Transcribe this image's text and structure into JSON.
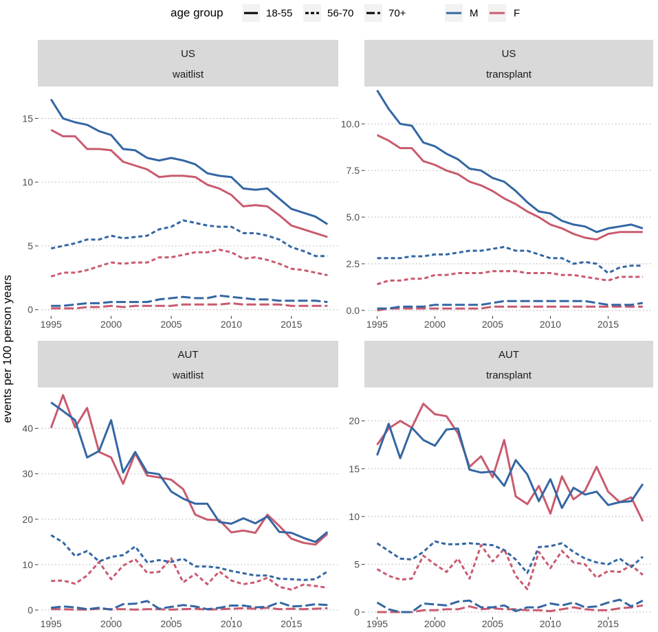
{
  "colors": {
    "M": "#3366a3",
    "F": "#c95a6e",
    "strip": "#d9d9d9",
    "grid": "#b3b3b3",
    "axis": "#333333"
  },
  "legend": {
    "title": "age group",
    "linetypes": [
      {
        "label": "18-55",
        "style": "solid"
      },
      {
        "label": "56-70",
        "style": "dashed"
      },
      {
        "label": "70+",
        "style": "longdash"
      }
    ],
    "sexes": [
      {
        "label": "M",
        "color": "#3366a3"
      },
      {
        "label": "F",
        "color": "#c95a6e"
      }
    ]
  },
  "ylabel": "events per 100 person years",
  "chart_data": [
    {
      "type": "line",
      "country": "US",
      "outcome": "waitlist",
      "ylim": [
        -0.5,
        17.5
      ],
      "yticks": [
        0,
        5,
        10,
        15
      ],
      "ytick_labels": [
        "0",
        "5",
        "10",
        "15"
      ],
      "x": [
        1995,
        1996,
        1997,
        1998,
        1999,
        2000,
        2001,
        2002,
        2003,
        2004,
        2005,
        2006,
        2007,
        2008,
        2009,
        2010,
        2011,
        2012,
        2013,
        2014,
        2015,
        2016,
        2017,
        2018
      ],
      "series": [
        {
          "sex": "M",
          "age": "18-55",
          "values": [
            16.5,
            15.0,
            14.7,
            14.5,
            14.0,
            13.7,
            12.6,
            12.5,
            11.9,
            11.7,
            11.9,
            11.7,
            11.4,
            10.7,
            10.5,
            10.4,
            9.5,
            9.4,
            9.5,
            8.7,
            7.9,
            7.6,
            7.3,
            6.7
          ]
        },
        {
          "sex": "F",
          "age": "18-55",
          "values": [
            14.1,
            13.6,
            13.6,
            12.6,
            12.6,
            12.5,
            11.6,
            11.3,
            11.0,
            10.4,
            10.5,
            10.5,
            10.4,
            9.8,
            9.5,
            9.0,
            8.1,
            8.2,
            8.1,
            7.4,
            6.6,
            6.3,
            6.0,
            5.7
          ]
        },
        {
          "sex": "M",
          "age": "56-70",
          "values": [
            4.8,
            5.0,
            5.2,
            5.5,
            5.5,
            5.8,
            5.6,
            5.7,
            5.8,
            6.3,
            6.5,
            7.0,
            6.8,
            6.6,
            6.5,
            6.5,
            6.0,
            6.0,
            5.8,
            5.5,
            4.9,
            4.6,
            4.2,
            4.2
          ]
        },
        {
          "sex": "F",
          "age": "56-70",
          "values": [
            2.6,
            2.9,
            2.9,
            3.1,
            3.4,
            3.7,
            3.6,
            3.7,
            3.7,
            4.1,
            4.1,
            4.3,
            4.5,
            4.5,
            4.7,
            4.5,
            4.0,
            4.1,
            3.9,
            3.6,
            3.2,
            3.1,
            2.9,
            2.7
          ]
        },
        {
          "sex": "M",
          "age": "70+",
          "values": [
            0.3,
            0.3,
            0.4,
            0.5,
            0.5,
            0.6,
            0.6,
            0.6,
            0.6,
            0.8,
            0.9,
            1.0,
            0.9,
            0.9,
            1.1,
            1.0,
            0.9,
            0.8,
            0.8,
            0.7,
            0.7,
            0.7,
            0.7,
            0.6
          ]
        },
        {
          "sex": "F",
          "age": "70+",
          "values": [
            0.1,
            0.1,
            0.1,
            0.2,
            0.2,
            0.3,
            0.2,
            0.3,
            0.3,
            0.3,
            0.3,
            0.4,
            0.4,
            0.4,
            0.4,
            0.5,
            0.4,
            0.4,
            0.4,
            0.4,
            0.3,
            0.3,
            0.3,
            0.3
          ]
        }
      ]
    },
    {
      "type": "line",
      "country": "US",
      "outcome": "transplant",
      "ylim": [
        -0.3,
        12.0
      ],
      "yticks": [
        0,
        2.5,
        5,
        7.5,
        10
      ],
      "ytick_labels": [
        "0.0",
        "2.5",
        "5.0",
        "7.5",
        "10.0"
      ],
      "x": [
        1995,
        1996,
        1997,
        1998,
        1999,
        2000,
        2001,
        2002,
        2003,
        2004,
        2005,
        2006,
        2007,
        2008,
        2009,
        2010,
        2011,
        2012,
        2013,
        2014,
        2015,
        2016,
        2017,
        2018
      ],
      "series": [
        {
          "sex": "M",
          "age": "18-55",
          "values": [
            11.8,
            10.8,
            10.0,
            9.9,
            9.0,
            8.8,
            8.4,
            8.1,
            7.6,
            7.5,
            7.1,
            6.9,
            6.4,
            5.8,
            5.3,
            5.2,
            4.8,
            4.6,
            4.5,
            4.2,
            4.4,
            4.5,
            4.6,
            4.4
          ]
        },
        {
          "sex": "F",
          "age": "18-55",
          "values": [
            9.4,
            9.1,
            8.7,
            8.7,
            8.0,
            7.8,
            7.5,
            7.3,
            6.9,
            6.7,
            6.4,
            6.0,
            5.7,
            5.3,
            5.0,
            4.6,
            4.4,
            4.1,
            3.9,
            3.8,
            4.1,
            4.2,
            4.2,
            4.2
          ]
        },
        {
          "sex": "M",
          "age": "56-70",
          "values": [
            2.8,
            2.8,
            2.8,
            2.9,
            2.9,
            3.0,
            3.0,
            3.1,
            3.2,
            3.2,
            3.3,
            3.4,
            3.2,
            3.2,
            3.0,
            2.8,
            2.8,
            2.5,
            2.6,
            2.5,
            2.0,
            2.3,
            2.4,
            2.4
          ]
        },
        {
          "sex": "F",
          "age": "56-70",
          "values": [
            1.4,
            1.6,
            1.6,
            1.7,
            1.7,
            1.9,
            1.9,
            2.0,
            2.0,
            2.0,
            2.1,
            2.1,
            2.1,
            2.0,
            2.0,
            2.0,
            1.9,
            1.9,
            1.8,
            1.7,
            1.6,
            1.8,
            1.8,
            1.8
          ]
        },
        {
          "sex": "M",
          "age": "70+",
          "values": [
            0.1,
            0.1,
            0.2,
            0.2,
            0.2,
            0.3,
            0.3,
            0.3,
            0.3,
            0.3,
            0.4,
            0.5,
            0.5,
            0.5,
            0.5,
            0.5,
            0.5,
            0.5,
            0.5,
            0.4,
            0.3,
            0.3,
            0.3,
            0.4
          ]
        },
        {
          "sex": "F",
          "age": "70+",
          "values": [
            0.0,
            0.1,
            0.1,
            0.1,
            0.1,
            0.1,
            0.1,
            0.1,
            0.1,
            0.1,
            0.2,
            0.2,
            0.2,
            0.2,
            0.2,
            0.2,
            0.2,
            0.2,
            0.2,
            0.2,
            0.2,
            0.2,
            0.2,
            0.2
          ]
        }
      ]
    },
    {
      "type": "line",
      "country": "AUT",
      "outcome": "waitlist",
      "ylim": [
        -1.5,
        49.0
      ],
      "yticks": [
        0,
        10,
        20,
        30,
        40
      ],
      "ytick_labels": [
        "0",
        "10",
        "20",
        "30",
        "40"
      ],
      "x": [
        1995,
        1996,
        1997,
        1998,
        1999,
        2000,
        2001,
        2002,
        2003,
        2004,
        2005,
        2006,
        2007,
        2008,
        2009,
        2010,
        2011,
        2012,
        2013,
        2014,
        2015,
        2016,
        2017,
        2018
      ],
      "series": [
        {
          "sex": "M",
          "age": "18-55",
          "values": [
            45.7,
            43.8,
            41.8,
            33.6,
            35.0,
            41.8,
            30.3,
            34.8,
            30.3,
            29.9,
            26.1,
            24.5,
            23.4,
            23.4,
            19.4,
            19.0,
            20.2,
            19.1,
            20.6,
            17.2,
            17.0,
            15.9,
            15.0,
            17.2
          ]
        },
        {
          "sex": "F",
          "age": "18-55",
          "values": [
            40.1,
            47.3,
            40.2,
            44.5,
            34.8,
            33.6,
            27.8,
            34.5,
            29.6,
            29.2,
            28.7,
            26.6,
            21.0,
            19.9,
            19.8,
            17.1,
            17.5,
            17.0,
            21.0,
            18.5,
            15.7,
            14.8,
            14.4,
            16.8
          ]
        },
        {
          "sex": "M",
          "age": "56-70",
          "values": [
            16.5,
            14.9,
            11.9,
            13.0,
            10.7,
            11.7,
            12.1,
            14.0,
            10.5,
            11.0,
            10.6,
            11.3,
            9.6,
            9.6,
            9.3,
            8.6,
            8.1,
            7.6,
            7.6,
            6.9,
            6.8,
            6.6,
            6.8,
            8.5
          ]
        },
        {
          "sex": "F",
          "age": "56-70",
          "values": [
            6.4,
            6.5,
            5.8,
            7.6,
            10.6,
            6.8,
            9.8,
            11.2,
            8.2,
            8.4,
            11.4,
            6.1,
            8.0,
            5.7,
            8.5,
            6.5,
            5.7,
            6.1,
            7.1,
            5.1,
            4.5,
            5.6,
            5.3,
            4.9
          ]
        },
        {
          "sex": "M",
          "age": "70+",
          "values": [
            0.5,
            0.8,
            0.6,
            0.2,
            0.5,
            0.1,
            1.3,
            1.4,
            2.0,
            0.3,
            0.7,
            1.1,
            0.8,
            0.2,
            0.5,
            1.0,
            1.0,
            0.6,
            0.7,
            1.7,
            0.8,
            0.9,
            1.3,
            1.1
          ]
        },
        {
          "sex": "F",
          "age": "70+",
          "values": [
            0.2,
            0.2,
            0.1,
            0.1,
            0.3,
            0.2,
            0.2,
            0.1,
            0.2,
            0.2,
            0.1,
            0.2,
            0.3,
            0.1,
            0.2,
            0.3,
            0.4,
            0.3,
            0.5,
            0.2,
            0.3,
            0.2,
            0.3,
            0.4
          ]
        }
      ]
    },
    {
      "type": "line",
      "country": "AUT",
      "outcome": "transplant",
      "ylim": [
        -0.5,
        23.5
      ],
      "yticks": [
        0,
        5,
        10,
        15,
        20
      ],
      "ytick_labels": [
        "0",
        "5",
        "10",
        "15",
        "20"
      ],
      "x": [
        1995,
        1996,
        1997,
        1998,
        1999,
        2000,
        2001,
        2002,
        2003,
        2004,
        2005,
        2006,
        2007,
        2008,
        2009,
        2010,
        2011,
        2012,
        2013,
        2014,
        2015,
        2016,
        2017,
        2018
      ],
      "series": [
        {
          "sex": "M",
          "age": "18-55",
          "values": [
            16.4,
            19.7,
            16.1,
            19.3,
            18.0,
            17.4,
            19.1,
            19.2,
            14.9,
            14.6,
            14.7,
            13.2,
            15.9,
            14.4,
            11.6,
            13.9,
            10.9,
            13.0,
            12.3,
            12.6,
            11.2,
            11.5,
            11.6,
            13.4
          ]
        },
        {
          "sex": "F",
          "age": "18-55",
          "values": [
            17.5,
            19.2,
            20.0,
            19.3,
            21.8,
            20.7,
            20.5,
            18.7,
            15.2,
            16.3,
            14.1,
            18.0,
            12.1,
            11.3,
            13.2,
            10.3,
            14.2,
            11.8,
            12.7,
            15.2,
            12.6,
            11.5,
            12.0,
            9.5
          ]
        },
        {
          "sex": "M",
          "age": "56-70",
          "values": [
            7.2,
            6.4,
            5.6,
            5.5,
            6.3,
            7.4,
            7.1,
            7.1,
            7.2,
            7.1,
            7.0,
            6.5,
            5.5,
            4.1,
            6.8,
            6.9,
            7.2,
            6.3,
            5.6,
            5.2,
            5.0,
            5.6,
            4.7,
            5.8
          ]
        },
        {
          "sex": "F",
          "age": "56-70",
          "values": [
            4.5,
            3.8,
            3.4,
            3.5,
            5.9,
            5.0,
            4.2,
            5.6,
            3.5,
            7.0,
            5.3,
            6.6,
            3.8,
            2.4,
            6.3,
            4.6,
            6.4,
            5.2,
            5.0,
            3.6,
            4.3,
            4.2,
            4.9,
            3.9
          ]
        },
        {
          "sex": "M",
          "age": "70+",
          "values": [
            1.0,
            0.3,
            0.0,
            0.0,
            0.9,
            0.8,
            0.7,
            1.1,
            1.2,
            0.5,
            0.5,
            0.7,
            0.1,
            0.5,
            0.5,
            0.9,
            0.7,
            1.0,
            0.5,
            0.6,
            1.0,
            1.3,
            0.6,
            1.2
          ]
        },
        {
          "sex": "F",
          "age": "70+",
          "values": [
            0.0,
            0.0,
            0.0,
            0.0,
            0.2,
            0.2,
            0.3,
            0.3,
            0.6,
            0.3,
            0.4,
            0.3,
            0.3,
            0.2,
            0.2,
            0.1,
            0.3,
            0.5,
            0.3,
            0.2,
            0.2,
            0.4,
            0.5,
            0.7
          ]
        }
      ]
    }
  ]
}
